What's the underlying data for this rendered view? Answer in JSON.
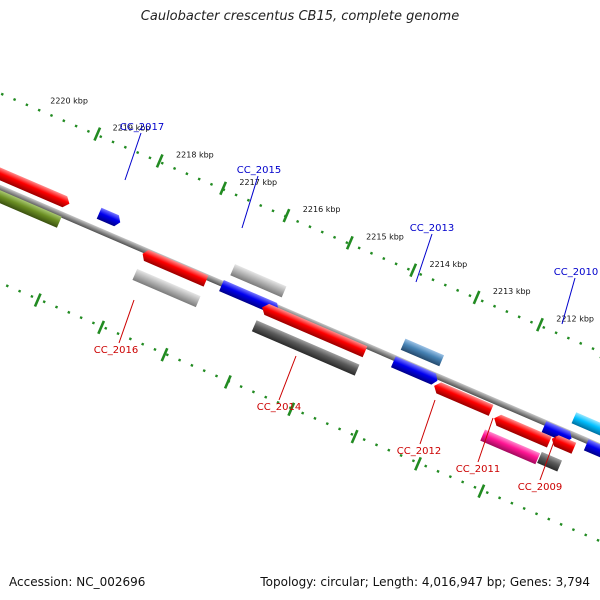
{
  "title": "Caulobacter crescentus CB15, complete genome",
  "footer": {
    "accession": "Accession: NC_002696",
    "summary": "Topology: circular; Length: 4,016,947 bp; Genes: 3,794"
  },
  "scale_labels": [
    "2220 kbp",
    "2219 kbp",
    "2218 kbp",
    "2217 kbp",
    "2216 kbp",
    "2215 kbp",
    "2214 kbp",
    "2213 kbp",
    "2212 kbp"
  ],
  "gene_labels": [
    "CC_2017",
    "CC_2015",
    "CC_2013",
    "CC_2010",
    "CC_2016",
    "CC_2014",
    "CC_2012",
    "CC_2011",
    "CC_2009"
  ],
  "colors": {
    "red": "#ff0000",
    "blue": "#0000ee",
    "gray": "#a9a9a9",
    "dark_gray": "#555555",
    "olive": "#6b8e23",
    "steel_blue": "#4682b4",
    "magenta": "#ff1493",
    "cyan": "#00bfff",
    "backbone": "#808080",
    "ticks": "#228b22"
  }
}
